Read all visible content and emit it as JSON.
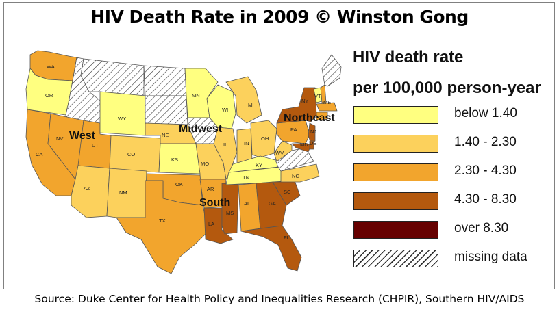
{
  "title": "HIV Death Rate in 2009 © Winston Gong",
  "source": "Source: Duke Center for Health Policy and Inequalities Research (CHPIR), Southern HIV/AIDS",
  "legend": {
    "title_line1": "HIV death rate",
    "title_line2": "per 100,000 person-year",
    "items": [
      {
        "label": "below 1.40",
        "color": "#ffff80"
      },
      {
        "label": "1.40 - 2.30",
        "color": "#fcd15c"
      },
      {
        "label": "2.30 - 4.30",
        "color": "#f2a52d"
      },
      {
        "label": "4.30 - 8.30",
        "color": "#b4590e"
      },
      {
        "label": "over 8.30",
        "color": "#660000"
      },
      {
        "label": "missing data",
        "color": "hatched"
      }
    ]
  },
  "regions": {
    "west": "West",
    "midwest": "Midwest",
    "south": "South",
    "northeast": "Northeast"
  },
  "states": {
    "WA": "WA",
    "OR": "OR",
    "CA": "CA",
    "NV": "NV",
    "UT": "UT",
    "AZ": "AZ",
    "WY": "WY",
    "CO": "CO",
    "NM": "NM",
    "NE": "NE",
    "KS": "KS",
    "OK": "OK",
    "TX": "TX",
    "MN": "MN",
    "IA": "IA",
    "MO": "MO",
    "AR": "AR",
    "LA": "LA",
    "WI": "WI",
    "IL": "IL",
    "MS": "MS",
    "MI": "MI",
    "IN": "IN",
    "OH": "OH",
    "KY": "KY",
    "TN": "TN",
    "AL": "AL",
    "GA": "GA",
    "FL": "FL",
    "SC": "SC",
    "NC": "NC",
    "WV": "WV",
    "PA": "PA",
    "NY": "NY",
    "VT": "VT",
    "NJ": "NJ",
    "MD": "MD",
    "DE": "DE",
    "ME": "ME"
  }
}
